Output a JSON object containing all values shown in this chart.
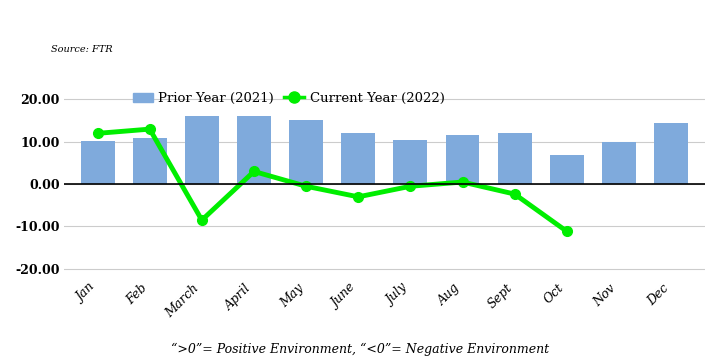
{
  "months": [
    "Jan",
    "Feb",
    "March",
    "April",
    "May",
    "June",
    "July",
    "Aug",
    "Sept",
    "Oct",
    "Nov",
    "Dec"
  ],
  "prior_year_values": [
    10.2,
    11.0,
    16.2,
    16.0,
    15.2,
    12.2,
    10.5,
    11.5,
    12.0,
    7.0,
    10.0,
    14.5
  ],
  "current_year_values": [
    12.0,
    13.0,
    -8.5,
    3.0,
    -0.5,
    -3.0,
    -0.5,
    0.5,
    -2.35,
    -11.16,
    null,
    null
  ],
  "bar_color": "#7faadc",
  "line_color": "#00ee00",
  "bar_label": "Prior Year (2021)",
  "line_label": "Current Year (2022)",
  "source_text": "Source: FTR",
  "footnote": "“>0”= Positive Environment, “<0”= Negative Environment",
  "ylim": [
    -22,
    23
  ],
  "yticks": [
    -20.0,
    -10.0,
    0.0,
    10.0,
    20.0
  ],
  "background_color": "#ffffff",
  "plot_bg_color": "#ffffff"
}
